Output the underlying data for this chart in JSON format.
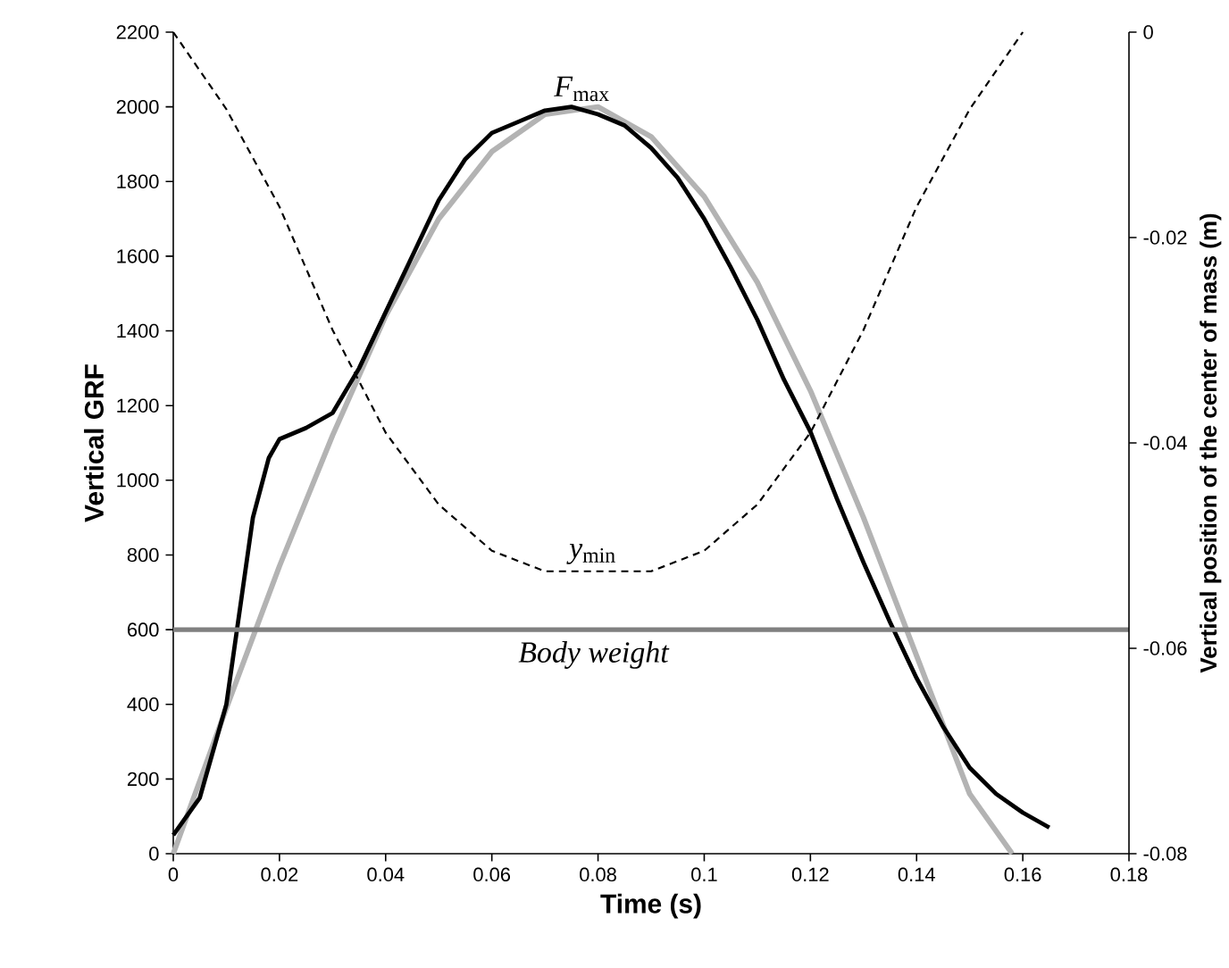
{
  "chart_data": {
    "type": "line",
    "xlabel": "Time (s)",
    "ylabel": "Vertical GRF",
    "y2label": "Vertical position of the center of mass (m)",
    "xlim": [
      0,
      0.18
    ],
    "xticks": [
      0,
      0.02,
      0.04,
      0.06,
      0.08,
      0.1,
      0.12,
      0.14,
      0.16,
      0.18
    ],
    "ylim": [
      0,
      2200
    ],
    "yticks": [
      0,
      200,
      400,
      600,
      800,
      1000,
      1200,
      1400,
      1600,
      1800,
      2000,
      2200
    ],
    "y2lim": [
      -0.08,
      0
    ],
    "y2ticks": [
      -0.08,
      -0.06,
      -0.04,
      -0.02,
      0
    ],
    "series": [
      {
        "color": "#b3b3b3",
        "x": [
          0,
          0.01,
          0.02,
          0.03,
          0.04,
          0.05,
          0.06,
          0.07,
          0.08,
          0.09,
          0.1,
          0.11,
          0.12,
          0.13,
          0.14,
          0.15,
          0.158
        ],
        "values": [
          0,
          390,
          770,
          1120,
          1440,
          1700,
          1880,
          1980,
          2000,
          1920,
          1760,
          1530,
          1240,
          900,
          530,
          160,
          0
        ]
      },
      {
        "color": "#000000",
        "x": [
          0,
          0.005,
          0.01,
          0.013,
          0.015,
          0.018,
          0.02,
          0.025,
          0.03,
          0.035,
          0.04,
          0.045,
          0.05,
          0.055,
          0.06,
          0.065,
          0.07,
          0.075,
          0.08,
          0.085,
          0.09,
          0.095,
          0.1,
          0.105,
          0.11,
          0.115,
          0.12,
          0.125,
          0.13,
          0.135,
          0.14,
          0.145,
          0.15,
          0.155,
          0.16,
          0.165
        ],
        "values": [
          50,
          150,
          400,
          700,
          900,
          1060,
          1110,
          1140,
          1180,
          1300,
          1450,
          1600,
          1750,
          1860,
          1930,
          1960,
          1990,
          2000,
          1980,
          1950,
          1890,
          1810,
          1700,
          1570,
          1430,
          1270,
          1130,
          950,
          780,
          620,
          470,
          340,
          230,
          160,
          110,
          70
        ]
      },
      {
        "color": "#000000",
        "axis": "y2",
        "line_style": "dashed",
        "x": [
          0,
          0.01,
          0.02,
          0.03,
          0.04,
          0.05,
          0.06,
          0.07,
          0.08,
          0.09,
          0.1,
          0.11,
          0.12,
          0.13,
          0.14,
          0.15,
          0.16
        ],
        "values": [
          0,
          -0.0075,
          -0.017,
          -0.029,
          -0.039,
          -0.046,
          -0.0505,
          -0.0525,
          -0.0525,
          -0.0525,
          -0.0505,
          -0.046,
          -0.039,
          -0.029,
          -0.017,
          -0.0075,
          0
        ]
      }
    ],
    "ref_lines": [
      {
        "axis": "y",
        "value": 600,
        "label": "*Body weight*",
        "color": "#808080"
      }
    ],
    "annotations": [
      {
        "text": "*F*$_{max}$",
        "x": 0.077,
        "y": 2000
      },
      {
        "text": "*y*$_{min}$",
        "x": 0.079,
        "y": 760
      }
    ]
  }
}
